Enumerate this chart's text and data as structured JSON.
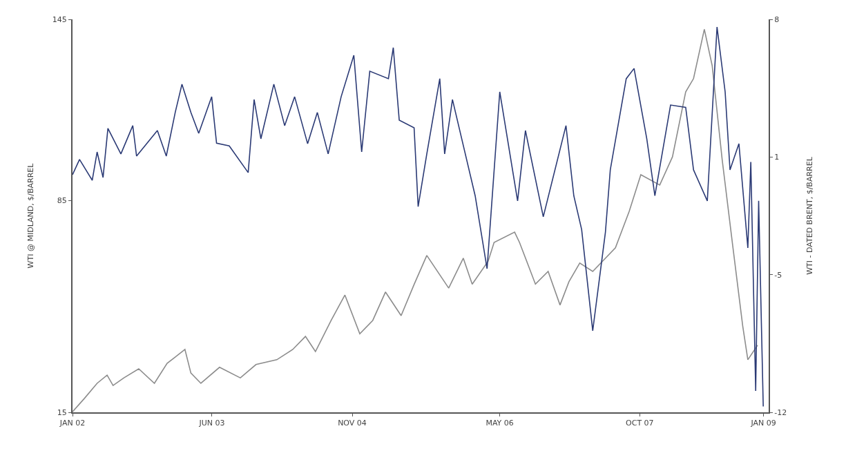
{
  "chart_data": {
    "type": "line",
    "ylabel": "WTI @ MIDLAND, $/BARREL",
    "y2label": "WTI - DATED BRENT, $/BARREL",
    "xlim": [
      "2002-01-01",
      "2009-01-20"
    ],
    "xticks": [
      {
        "value": "2002-01-01",
        "label": "JAN 02"
      },
      {
        "value": "2003-06-01",
        "label": "JUN 03"
      },
      {
        "value": "2004-11-01",
        "label": "NOV 04"
      },
      {
        "value": "2006-05-01",
        "label": "MAY 06"
      },
      {
        "value": "2007-10-01",
        "label": "OCT 07"
      },
      {
        "value": "2009-01-01",
        "label": "JAN 09"
      }
    ],
    "ylim": [
      15,
      145
    ],
    "yticks": [
      15,
      85,
      145
    ],
    "y2lim": [
      -12,
      8
    ],
    "y2ticks": [
      -12,
      -5,
      1,
      8
    ],
    "line_style": "solid",
    "series": [
      {
        "color": "#8c8c8c",
        "x": [
          "2002-01-01",
          "2002-02-14",
          "2002-04-02",
          "2002-05-09",
          "2002-05-31",
          "2002-07-10",
          "2002-09-03",
          "2002-10-31",
          "2002-12-17",
          "2003-02-21",
          "2003-03-15",
          "2003-04-21",
          "2003-06-29",
          "2003-09-14",
          "2003-11-11",
          "2004-01-27",
          "2004-03-26",
          "2004-05-12",
          "2004-06-18",
          "2004-08-15",
          "2004-10-05",
          "2004-11-29",
          "2005-01-16",
          "2005-03-04",
          "2005-05-01",
          "2005-06-18",
          "2005-08-04",
          "2005-10-24",
          "2005-12-17",
          "2006-01-19",
          "2006-03-19",
          "2006-04-10",
          "2006-06-25",
          "2006-07-13",
          "2006-09-10",
          "2006-10-27",
          "2006-12-10",
          "2007-01-12",
          "2007-02-21",
          "2007-04-10",
          "2007-07-03",
          "2007-08-23",
          "2007-10-05",
          "2007-12-14",
          "2008-01-30",
          "2008-03-19",
          "2008-04-17",
          "2008-05-27",
          "2008-06-25",
          "2008-08-01",
          "2008-09-10",
          "2008-10-16",
          "2008-11-04",
          "2008-12-10"
        ],
        "values": [
          15.2,
          19.6,
          24.6,
          27.3,
          23.9,
          26.4,
          29.4,
          24.6,
          31.2,
          35.8,
          28.0,
          24.6,
          29.9,
          26.4,
          30.8,
          32.4,
          35.8,
          40.1,
          35.1,
          45.4,
          53.8,
          41.0,
          45.4,
          54.8,
          47.0,
          57.3,
          66.9,
          56.1,
          66.0,
          57.4,
          65.0,
          71.2,
          74.6,
          71.2,
          57.4,
          61.6,
          50.5,
          58.2,
          64.4,
          61.6,
          69.4,
          81.5,
          93.6,
          90.2,
          99.5,
          121.0,
          125.4,
          141.7,
          129.7,
          98.6,
          69.4,
          43.6,
          32.4,
          37.2
        ]
      },
      {
        "color": "#2b3a75",
        "axis": "y2",
        "x": [
          "2002-01-01",
          "2002-01-27",
          "2002-03-15",
          "2002-04-02",
          "2002-04-24",
          "2002-05-12",
          "2002-06-29",
          "2002-08-12",
          "2002-08-26",
          "2002-11-11",
          "2002-12-14",
          "2003-01-16",
          "2003-02-10",
          "2003-03-15",
          "2003-04-13",
          "2003-05-31",
          "2003-06-18",
          "2003-08-04",
          "2003-10-13",
          "2003-11-04",
          "2003-11-29",
          "2004-01-16",
          "2004-02-25",
          "2004-04-02",
          "2004-05-20",
          "2004-06-25",
          "2004-08-04",
          "2004-09-21",
          "2004-11-07",
          "2004-12-06",
          "2005-01-05",
          "2005-03-15",
          "2005-04-02",
          "2005-04-24",
          "2005-06-18",
          "2005-07-03",
          "2005-08-04",
          "2005-09-21",
          "2005-10-09",
          "2005-11-07",
          "2006-01-30",
          "2006-03-15",
          "2006-05-01",
          "2006-07-06",
          "2006-08-04",
          "2006-10-09",
          "2007-01-01",
          "2007-01-30",
          "2007-02-28",
          "2007-04-10",
          "2007-05-27",
          "2007-06-14",
          "2007-08-12",
          "2007-09-10",
          "2007-10-27",
          "2007-11-26",
          "2008-01-23",
          "2008-03-19",
          "2008-04-17",
          "2008-06-07",
          "2008-07-13",
          "2008-08-12",
          "2008-08-30",
          "2008-10-02",
          "2008-11-04",
          "2008-11-15",
          "2008-12-03",
          "2008-12-14",
          "2008-12-31"
        ],
        "values": [
          0.09,
          0.87,
          -0.19,
          1.25,
          -0.05,
          2.45,
          1.15,
          2.59,
          1.04,
          2.34,
          1.04,
          3.26,
          4.7,
          3.26,
          2.2,
          4.06,
          1.7,
          1.56,
          0.2,
          3.92,
          1.92,
          4.7,
          2.59,
          4.06,
          1.67,
          3.26,
          1.15,
          4.06,
          6.17,
          1.25,
          5.36,
          4.98,
          6.56,
          2.87,
          2.48,
          -1.53,
          1.15,
          4.98,
          1.15,
          3.92,
          -0.98,
          -4.69,
          4.31,
          -1.24,
          2.34,
          -2.05,
          2.59,
          -0.98,
          -2.7,
          -7.85,
          -2.83,
          0.34,
          4.98,
          5.5,
          1.92,
          -0.98,
          3.64,
          3.52,
          0.34,
          -1.24,
          7.61,
          4.31,
          0.34,
          1.67,
          -3.63,
          0.74,
          -10.91,
          -1.24,
          -11.7
        ]
      }
    ]
  }
}
